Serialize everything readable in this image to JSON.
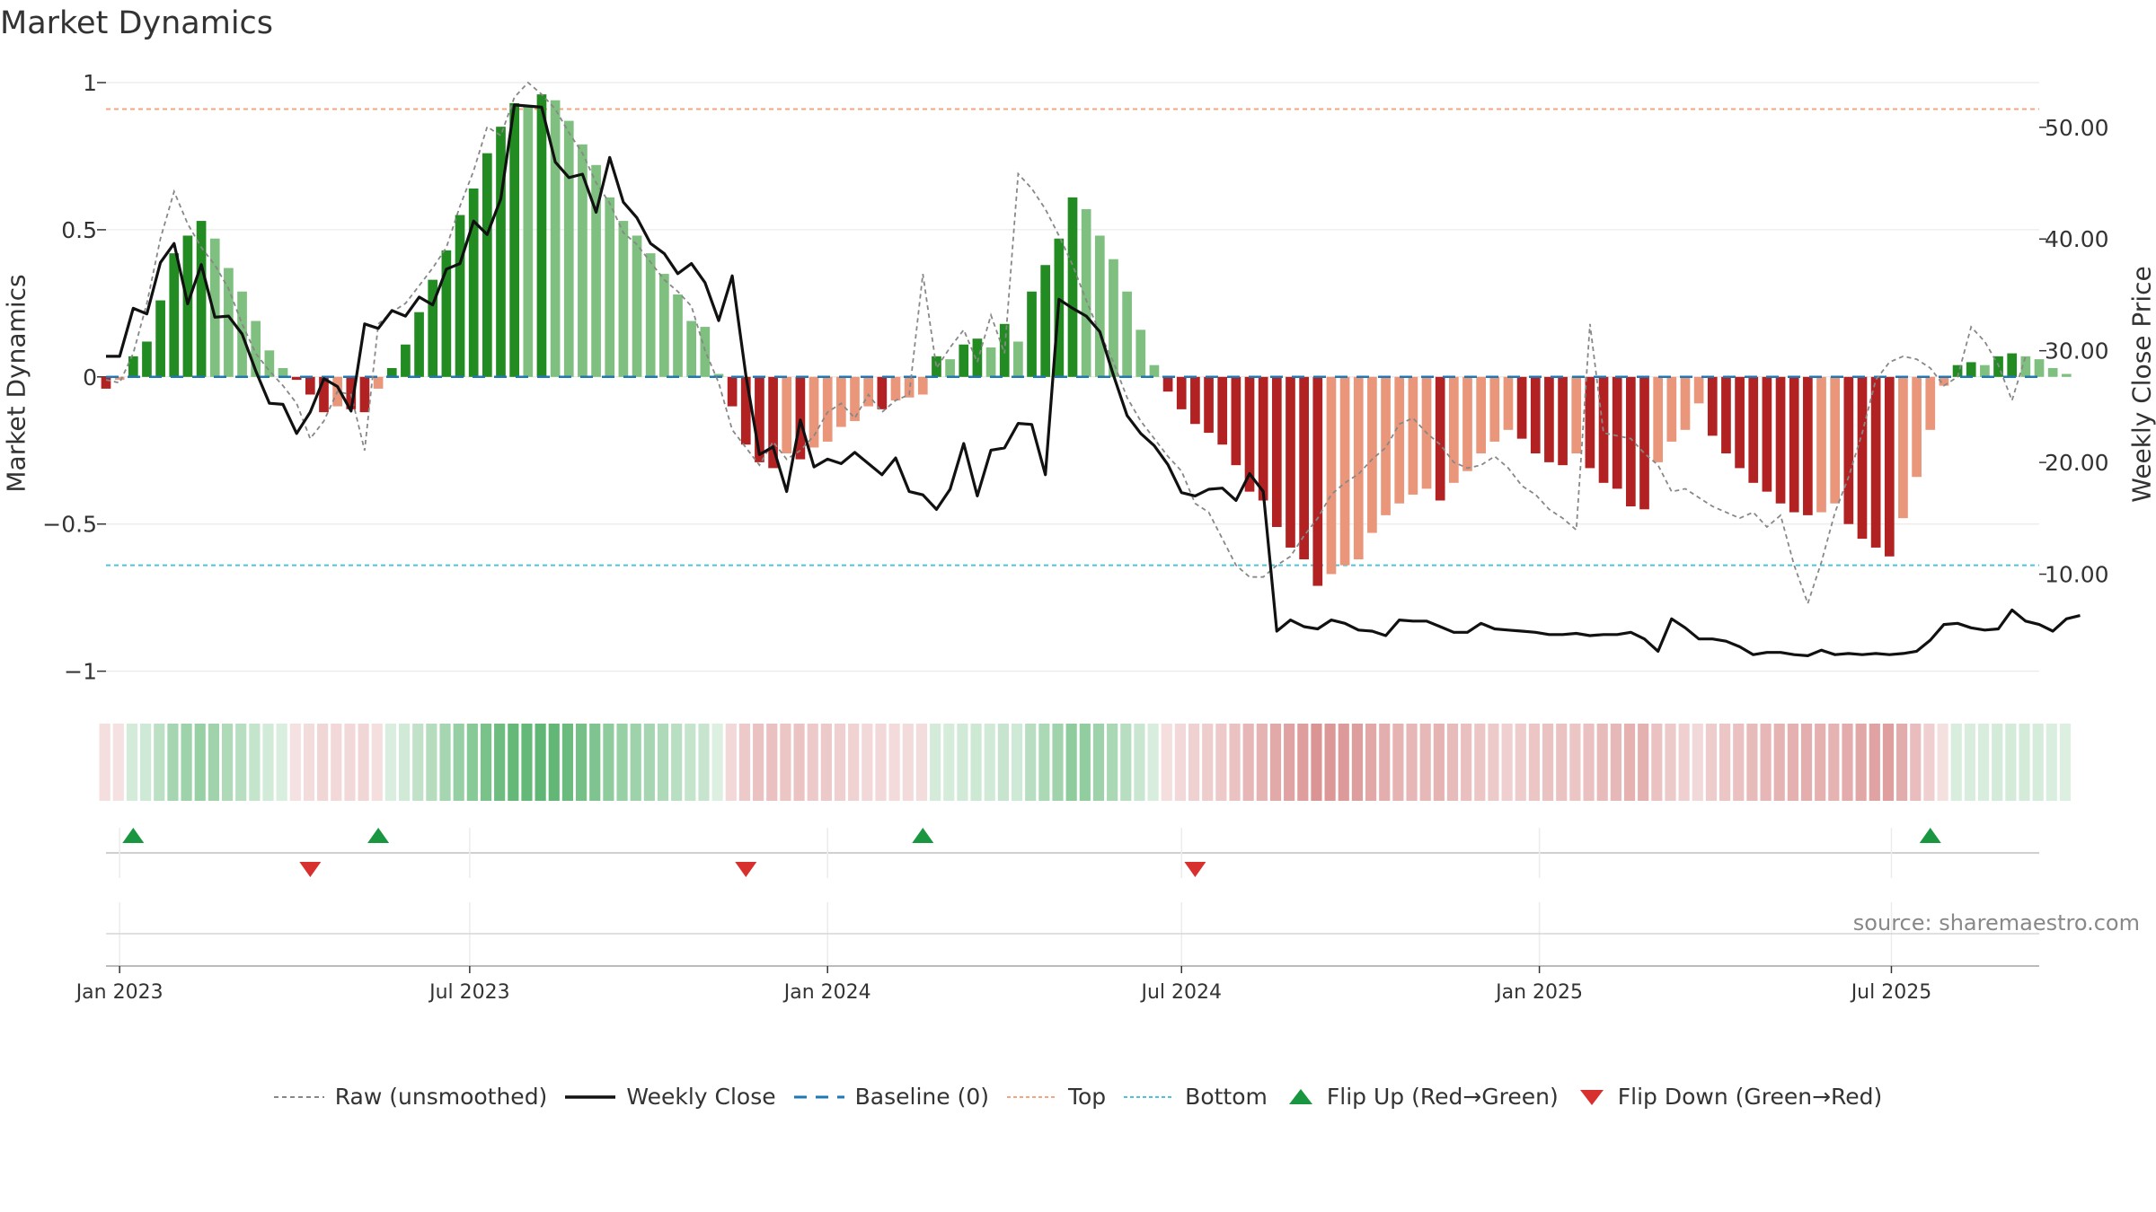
{
  "title": "Market Dynamics",
  "source": "source: sharemaestro.com",
  "colors": {
    "dark_green": "#228b22",
    "light_green": "#7fbf7f",
    "dark_red": "#b22222",
    "light_red": "#e9967a",
    "top_line": "#f4a582",
    "bottom_line": "#4fc3d9",
    "baseline": "#1f77b4",
    "flip_up": "#1a9641",
    "flip_down": "#d7302f"
  },
  "chart_data": {
    "type": "bar",
    "xlabel": "",
    "ylabel_left": "Market Dynamics",
    "ylabel_right": "Weekly Close Price",
    "ylim_left": [
      -1.05,
      1.0
    ],
    "ylim_right": [
      0,
      54
    ],
    "yticks_left": [
      "1",
      "0.5",
      "0",
      "−0.5",
      "−1"
    ],
    "yticks_right": [
      "50.00",
      "40.00",
      "30.00",
      "20.00",
      "10.00"
    ],
    "xticks": [
      "Jan 2023",
      "Jul 2023",
      "Jan 2024",
      "Jul 2024",
      "Jan 2025",
      "Jul 2025"
    ],
    "x_start": "2022-12-26",
    "x_end": "2025-09-15",
    "top_level": 0.91,
    "bottom_level": -0.64,
    "weekly_smoothed": [
      -0.04,
      -0.01,
      0.07,
      0.12,
      0.26,
      0.42,
      0.48,
      0.53,
      0.47,
      0.37,
      0.29,
      0.19,
      0.09,
      0.03,
      -0.01,
      -0.06,
      -0.12,
      -0.1,
      -0.11,
      -0.12,
      -0.04,
      0.03,
      0.11,
      0.22,
      0.33,
      0.43,
      0.55,
      0.64,
      0.76,
      0.85,
      0.93,
      0.92,
      0.96,
      0.94,
      0.87,
      0.79,
      0.72,
      0.61,
      0.53,
      0.48,
      0.42,
      0.35,
      0.28,
      0.19,
      0.17,
      0.01,
      -0.1,
      -0.23,
      -0.29,
      -0.31,
      -0.26,
      -0.28,
      -0.24,
      -0.22,
      -0.17,
      -0.15,
      -0.1,
      -0.11,
      -0.08,
      -0.07,
      -0.06,
      0.07,
      0.06,
      0.11,
      0.13,
      0.1,
      0.18,
      0.12,
      0.29,
      0.38,
      0.47,
      0.61,
      0.57,
      0.48,
      0.4,
      0.29,
      0.16,
      0.04,
      -0.05,
      -0.11,
      -0.16,
      -0.19,
      -0.23,
      -0.3,
      -0.39,
      -0.42,
      -0.51,
      -0.58,
      -0.62,
      -0.71,
      -0.67,
      -0.64,
      -0.62,
      -0.53,
      -0.47,
      -0.43,
      -0.4,
      -0.38,
      -0.42,
      -0.36,
      -0.32,
      -0.26,
      -0.22,
      -0.18,
      -0.21,
      -0.26,
      -0.29,
      -0.3,
      -0.26,
      -0.31,
      -0.36,
      -0.38,
      -0.44,
      -0.45,
      -0.29,
      -0.22,
      -0.18,
      -0.09,
      -0.2,
      -0.26,
      -0.31,
      -0.36,
      -0.39,
      -0.43,
      -0.46,
      -0.47,
      -0.46,
      -0.43,
      -0.5,
      -0.55,
      -0.58,
      -0.61,
      -0.48,
      -0.34,
      -0.18,
      -0.03,
      0.04,
      0.05,
      0.04,
      0.07,
      0.08,
      0.07,
      0.06,
      0.03,
      0.01
    ],
    "weekly_close": [
      29.5,
      29.5,
      33.8,
      33.3,
      37.9,
      39.6,
      34.2,
      37.7,
      33.0,
      33.1,
      31.5,
      28.2,
      25.3,
      25.2,
      22.6,
      24.5,
      27.5,
      26.8,
      24.6,
      32.4,
      32.0,
      33.6,
      33.1,
      34.8,
      34.1,
      37.3,
      37.8,
      41.6,
      40.4,
      43.6,
      52.0,
      51.9,
      51.8,
      46.9,
      45.5,
      45.8,
      42.4,
      47.3,
      43.3,
      41.9,
      39.6,
      38.7,
      36.9,
      37.8,
      36.1,
      32.7,
      36.7,
      27.8,
      20.7,
      21.4,
      17.4,
      23.8,
      19.6,
      20.3,
      19.9,
      20.9,
      19.9,
      18.9,
      20.4,
      17.4,
      17.1,
      15.8,
      17.6,
      21.7,
      17.0,
      21.1,
      21.3,
      23.5,
      23.4,
      18.9,
      34.6,
      33.8,
      33.1,
      31.7,
      27.8,
      24.2,
      22.6,
      21.5,
      19.8,
      17.3,
      17.0,
      17.6,
      17.7,
      16.6,
      19.0,
      17.4,
      4.9,
      5.9,
      5.3,
      5.1,
      5.9,
      5.6,
      5.0,
      4.9,
      4.5,
      5.9,
      5.8,
      5.8,
      5.3,
      4.8,
      4.8,
      5.6,
      5.1,
      5.0,
      4.9,
      4.8,
      4.6,
      4.6,
      4.7,
      4.5,
      4.6,
      4.6,
      4.8,
      4.2,
      3.1,
      6.0,
      5.2,
      4.2,
      4.2,
      4.0,
      3.5,
      2.8,
      3.0,
      3.0,
      2.8,
      2.7,
      3.2,
      2.8,
      2.9,
      2.8,
      2.9,
      2.8,
      2.9,
      3.1,
      4.1,
      5.5,
      5.6,
      5.2,
      5.0,
      5.1,
      6.8,
      5.8,
      5.5,
      4.9,
      6.0,
      6.3
    ],
    "weekly_raw": [
      -0.01,
      -0.02,
      0.08,
      0.25,
      0.47,
      0.63,
      0.52,
      0.44,
      0.38,
      0.3,
      0.18,
      0.08,
      0.02,
      -0.03,
      -0.09,
      -0.21,
      -0.15,
      -0.05,
      -0.06,
      -0.25,
      0.18,
      0.22,
      0.25,
      0.31,
      0.37,
      0.44,
      0.58,
      0.7,
      0.85,
      0.82,
      0.95,
      1.0,
      0.96,
      0.91,
      0.83,
      0.76,
      0.66,
      0.59,
      0.49,
      0.45,
      0.39,
      0.33,
      0.29,
      0.24,
      0.09,
      -0.02,
      -0.18,
      -0.24,
      -0.3,
      -0.22,
      -0.28,
      -0.25,
      -0.2,
      -0.12,
      -0.09,
      -0.14,
      -0.06,
      -0.12,
      -0.08,
      -0.06,
      0.35,
      0.03,
      0.1,
      0.16,
      0.05,
      0.21,
      0.08,
      0.69,
      0.64,
      0.57,
      0.48,
      0.38,
      0.26,
      0.15,
      0.05,
      -0.07,
      -0.15,
      -0.21,
      -0.27,
      -0.32,
      -0.43,
      -0.46,
      -0.55,
      -0.64,
      -0.68,
      -0.68,
      -0.64,
      -0.61,
      -0.54,
      -0.48,
      -0.4,
      -0.36,
      -0.33,
      -0.28,
      -0.24,
      -0.16,
      -0.14,
      -0.19,
      -0.23,
      -0.29,
      -0.31,
      -0.3,
      -0.27,
      -0.31,
      -0.37,
      -0.4,
      -0.45,
      -0.48,
      -0.52,
      0.18,
      -0.19,
      -0.2,
      -0.21,
      -0.26,
      -0.3,
      -0.39,
      -0.38,
      -0.41,
      -0.44,
      -0.46,
      -0.48,
      -0.46,
      -0.51,
      -0.47,
      -0.64,
      -0.77,
      -0.63,
      -0.46,
      -0.34,
      -0.19,
      -0.01,
      0.05,
      0.07,
      0.06,
      0.03,
      -0.03,
      0.0,
      0.17,
      0.12,
      0.04,
      -0.08,
      0.07
    ],
    "flip_up_dates": [
      "2023-01-09",
      "2023-05-15",
      "2024-02-19",
      "2025-07-21"
    ],
    "flip_down_dates": [
      "2023-04-10",
      "2023-11-20",
      "2024-07-08"
    ]
  },
  "legend": {
    "raw": "Raw (unsmoothed)",
    "close": "Weekly Close",
    "baseline": "Baseline (0)",
    "top": "Top",
    "bottom": "Bottom",
    "flip_up": "Flip Up (Red→Green)",
    "flip_down": "Flip Down (Green→Red)"
  }
}
